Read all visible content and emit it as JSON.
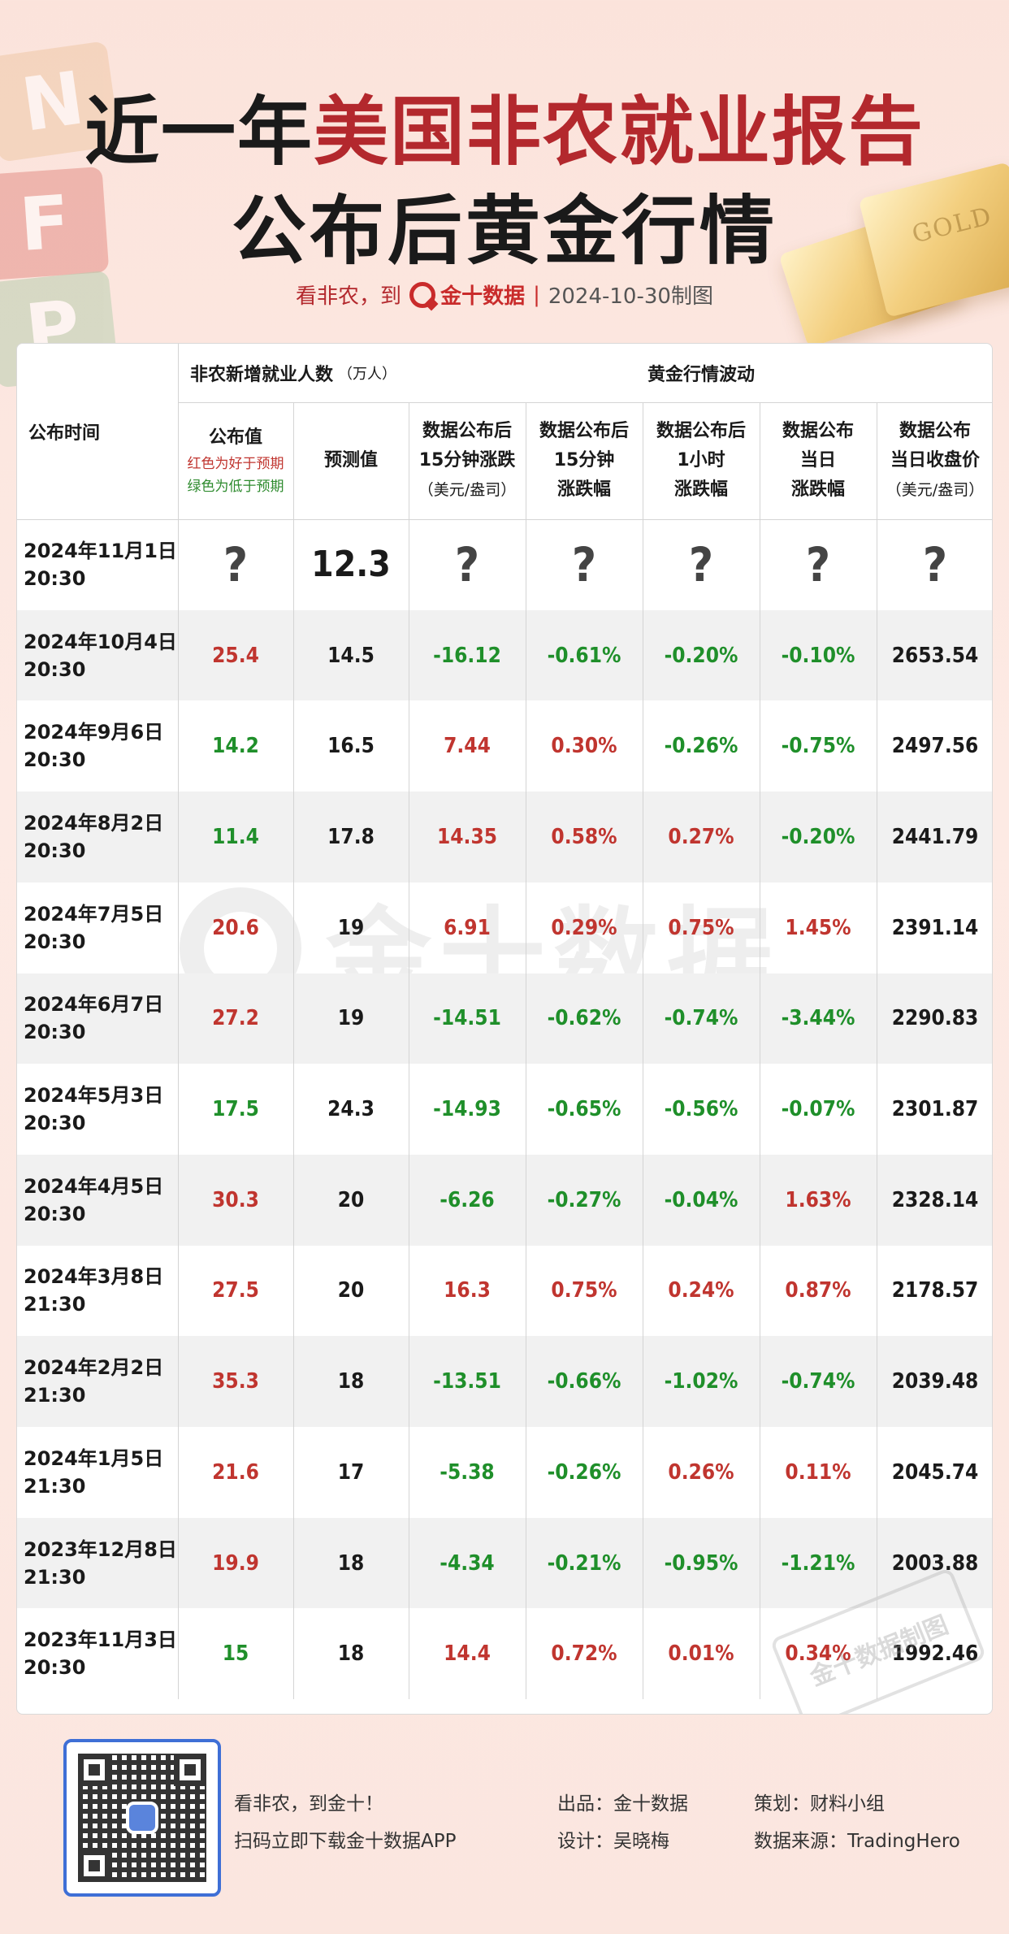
{
  "title": {
    "line1_prefix": "近一年",
    "line1_accent": "美国非农就业报告",
    "line2": "公布后黄金行情"
  },
  "subline": {
    "lead": "看非农，到",
    "brand": "金十数据",
    "sep": "|",
    "date": "2024-10-30制图"
  },
  "decor": {
    "blocks": [
      "N",
      "F",
      "P"
    ],
    "gold_bar_text": "GOLD"
  },
  "colors": {
    "accent_red": "#b3282d",
    "value_red": "#c0352f",
    "value_green": "#1f8f2a",
    "qr_blue": "#3e6fd6"
  },
  "table": {
    "headers": {
      "pub_time": "公布时间",
      "nfp_group": "非农新增就业人数",
      "nfp_unit": "（万人）",
      "gold_group": "黄金行情波动",
      "actual": "公布值",
      "actual_note_red": "红色为好于预期",
      "actual_note_green": "绿色为低于预期",
      "forecast": "预测值",
      "c15_change_l1": "数据公布后",
      "c15_change_l2": "15分钟涨跌",
      "c15_change_unit": "（美元/盎司）",
      "c15_pct_l1": "数据公布后",
      "c15_pct_l2": "15分钟",
      "c15_pct_l3": "涨跌幅",
      "c1h_pct_l1": "数据公布后",
      "c1h_pct_l2": "1小时",
      "c1h_pct_l3": "涨跌幅",
      "day_pct_l1": "数据公布",
      "day_pct_l2": "当日",
      "day_pct_l3": "涨跌幅",
      "close_l1": "数据公布",
      "close_l2": "当日收盘价",
      "close_unit": "（美元/盎司）"
    },
    "rows": [
      {
        "date": "2024年11月1日",
        "time": "20:30",
        "actual": "?",
        "forecast": "12.3",
        "chg15": "?",
        "pct15": "?",
        "pct1h": "?",
        "pctday": "?",
        "close": "?",
        "colors": [
          "q",
          "big",
          "q",
          "q",
          "q",
          "q",
          "q"
        ]
      },
      {
        "date": "2024年10月4日",
        "time": "20:30",
        "actual": "25.4",
        "forecast": "14.5",
        "chg15": "-16.12",
        "pct15": "-0.61%",
        "pct1h": "-0.20%",
        "pctday": "-0.10%",
        "close": "2653.54",
        "colors": [
          "red",
          "black",
          "green",
          "green",
          "green",
          "green",
          "black"
        ]
      },
      {
        "date": "2024年9月6日",
        "time": "20:30",
        "actual": "14.2",
        "forecast": "16.5",
        "chg15": "7.44",
        "pct15": "0.30%",
        "pct1h": "-0.26%",
        "pctday": "-0.75%",
        "close": "2497.56",
        "colors": [
          "green",
          "black",
          "red",
          "red",
          "green",
          "green",
          "black"
        ]
      },
      {
        "date": "2024年8月2日",
        "time": "20:30",
        "actual": "11.4",
        "forecast": "17.8",
        "chg15": "14.35",
        "pct15": "0.58%",
        "pct1h": "0.27%",
        "pctday": "-0.20%",
        "close": "2441.79",
        "colors": [
          "green",
          "black",
          "red",
          "red",
          "red",
          "green",
          "black"
        ]
      },
      {
        "date": "2024年7月5日",
        "time": "20:30",
        "actual": "20.6",
        "forecast": "19",
        "chg15": "6.91",
        "pct15": "0.29%",
        "pct1h": "0.75%",
        "pctday": "1.45%",
        "close": "2391.14",
        "colors": [
          "red",
          "black",
          "red",
          "red",
          "red",
          "red",
          "black"
        ]
      },
      {
        "date": "2024年6月7日",
        "time": "20:30",
        "actual": "27.2",
        "forecast": "19",
        "chg15": "-14.51",
        "pct15": "-0.62%",
        "pct1h": "-0.74%",
        "pctday": "-3.44%",
        "close": "2290.83",
        "colors": [
          "red",
          "black",
          "green",
          "green",
          "green",
          "green",
          "black"
        ]
      },
      {
        "date": "2024年5月3日",
        "time": "20:30",
        "actual": "17.5",
        "forecast": "24.3",
        "chg15": "-14.93",
        "pct15": "-0.65%",
        "pct1h": "-0.56%",
        "pctday": "-0.07%",
        "close": "2301.87",
        "colors": [
          "green",
          "black",
          "green",
          "green",
          "green",
          "green",
          "black"
        ]
      },
      {
        "date": "2024年4月5日",
        "time": "20:30",
        "actual": "30.3",
        "forecast": "20",
        "chg15": "-6.26",
        "pct15": "-0.27%",
        "pct1h": "-0.04%",
        "pctday": "1.63%",
        "close": "2328.14",
        "colors": [
          "red",
          "black",
          "green",
          "green",
          "green",
          "red",
          "black"
        ]
      },
      {
        "date": "2024年3月8日",
        "time": "21:30",
        "actual": "27.5",
        "forecast": "20",
        "chg15": "16.3",
        "pct15": "0.75%",
        "pct1h": "0.24%",
        "pctday": "0.87%",
        "close": "2178.57",
        "colors": [
          "red",
          "black",
          "red",
          "red",
          "red",
          "red",
          "black"
        ]
      },
      {
        "date": "2024年2月2日",
        "time": "21:30",
        "actual": "35.3",
        "forecast": "18",
        "chg15": "-13.51",
        "pct15": "-0.66%",
        "pct1h": "-1.02%",
        "pctday": "-0.74%",
        "close": "2039.48",
        "colors": [
          "red",
          "black",
          "green",
          "green",
          "green",
          "green",
          "black"
        ]
      },
      {
        "date": "2024年1月5日",
        "time": "21:30",
        "actual": "21.6",
        "forecast": "17",
        "chg15": "-5.38",
        "pct15": "-0.26%",
        "pct1h": "0.26%",
        "pctday": "0.11%",
        "close": "2045.74",
        "colors": [
          "red",
          "black",
          "green",
          "green",
          "red",
          "red",
          "black"
        ]
      },
      {
        "date": "2023年12月8日",
        "time": "21:30",
        "actual": "19.9",
        "forecast": "18",
        "chg15": "-4.34",
        "pct15": "-0.21%",
        "pct1h": "-0.95%",
        "pctday": "-1.21%",
        "close": "2003.88",
        "colors": [
          "red",
          "black",
          "green",
          "green",
          "green",
          "green",
          "black"
        ]
      },
      {
        "date": "2023年11月3日",
        "time": "20:30",
        "actual": "15",
        "forecast": "18",
        "chg15": "14.4",
        "pct15": "0.72%",
        "pct1h": "0.01%",
        "pctday": "0.34%",
        "close": "1992.46",
        "colors": [
          "green",
          "black",
          "red",
          "red",
          "red",
          "red",
          "black"
        ]
      }
    ]
  },
  "watermark": {
    "text": "金十数据",
    "stamp_text": "金十数据制图"
  },
  "footer": {
    "line1": "看非农，到金十！",
    "line2": "扫码立即下载金十数据APP",
    "producer": "出品：金十数据",
    "designer": "设计：吴晓梅",
    "planner": "策划：财料小组",
    "source": "数据来源：TradingHero"
  }
}
